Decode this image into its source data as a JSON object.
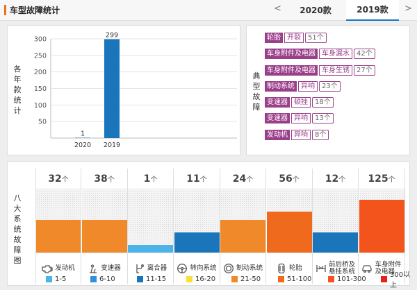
{
  "header": {
    "title": "车型故障统计",
    "prev_arrow": "<",
    "tabs": [
      {
        "label": "2020款",
        "active": false
      },
      {
        "label": "2019款",
        "active": true
      }
    ],
    "next_arrow": ">",
    "accent_color": "#e8731b",
    "active_tab_color": "#1a75bb"
  },
  "year_panel": {
    "ylabel": "各年款统计",
    "chart_data": {
      "type": "bar",
      "categories": [
        "2020",
        "2019"
      ],
      "values": [
        1,
        299
      ],
      "yticks": [
        50,
        100,
        150,
        200,
        250,
        300
      ],
      "ylim": [
        0,
        300
      ],
      "bar_color": "#1a75bb"
    }
  },
  "fault_panel": {
    "ylabel": "典型故障",
    "items": [
      {
        "category": "轮胎",
        "sub": "开裂",
        "count": "51个"
      },
      {
        "category": "车身附件及电器",
        "sub": "车身漏水",
        "count": "42个"
      },
      {
        "category": "车身附件及电器",
        "sub": "车身生锈",
        "count": "27个"
      },
      {
        "category": "制动系统",
        "sub": "异响",
        "count": "23个"
      },
      {
        "category": "变速器",
        "sub": "顿挫",
        "count": "18个"
      },
      {
        "category": "变速器",
        "sub": "异响",
        "count": "13个"
      },
      {
        "category": "发动机",
        "sub": "异响",
        "count": "8个"
      }
    ],
    "tag_color": "#9b3f8a"
  },
  "system_panel": {
    "ylabel": "八大系统故障图",
    "unit": "个",
    "systems": [
      {
        "name": "发动机",
        "count": 32,
        "level": 0.52,
        "color": "#f0892a",
        "icon": "engine-icon"
      },
      {
        "name": "变速器",
        "count": 38,
        "level": 0.52,
        "color": "#f0892a",
        "icon": "gear-shift-icon"
      },
      {
        "name": "离合器",
        "count": 1,
        "level": 0.12,
        "color": "#4db4ea",
        "icon": "clutch-icon"
      },
      {
        "name": "转向系统",
        "count": 11,
        "level": 0.32,
        "color": "#1a75bb",
        "icon": "steering-wheel-icon"
      },
      {
        "name": "制动系统",
        "count": 24,
        "level": 0.52,
        "color": "#f0892a",
        "icon": "brake-disc-icon"
      },
      {
        "name": "轮胎",
        "count": 56,
        "level": 0.66,
        "color": "#f06a1e",
        "icon": "tire-icon"
      },
      {
        "name": "前后桥及悬挂系统",
        "label_lines": [
          "前后桥及",
          "悬挂系统"
        ],
        "count": 12,
        "level": 0.32,
        "color": "#1a75bb",
        "icon": "suspension-icon"
      },
      {
        "name": "车身附件及电器",
        "label_lines": [
          "车身附件",
          "及电器"
        ],
        "count": 125,
        "level": 0.84,
        "color": "#f2541b",
        "icon": "car-body-icon"
      }
    ]
  },
  "legend": [
    {
      "label": "1-5",
      "color": "#4db4ea"
    },
    {
      "label": "6-10",
      "color": "#2f8fe0"
    },
    {
      "label": "11-15",
      "color": "#1a75bb"
    },
    {
      "label": "16-20",
      "color": "#f7e13a"
    },
    {
      "label": "21-50",
      "color": "#f0892a"
    },
    {
      "label": "51-100",
      "color": "#f06a1e"
    },
    {
      "label": "101-300",
      "color": "#f2541b"
    },
    {
      "label": "300以上",
      "color": "#e8221b"
    }
  ]
}
